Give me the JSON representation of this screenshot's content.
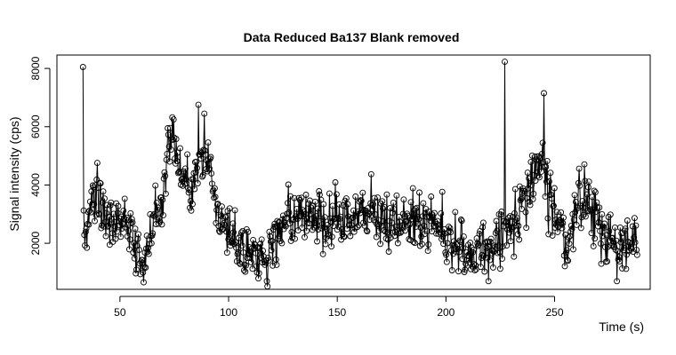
{
  "chart_data": {
    "type": "line",
    "title": "Data Reduced Ba137 Blank removed",
    "xlabel": "Time (s)",
    "ylabel": "Signal intensity (cps)",
    "xlim": [
      21,
      294
    ],
    "ylim": [
      420,
      8460
    ],
    "x_ticks": [
      50,
      100,
      150,
      200,
      250
    ],
    "y_ticks": [
      2000,
      4000,
      6000,
      8000
    ],
    "x_tick_labels": [
      "50",
      "100",
      "150",
      "200",
      "250"
    ],
    "y_tick_labels": [
      "2000",
      "4000",
      "6000",
      "8000"
    ],
    "line_color": "#000000",
    "marker": "open-circle",
    "grid": false,
    "sample_interval_s": 0.3,
    "series": [
      {
        "anchors_x": [
          33,
          34,
          36,
          40,
          45,
          50,
          55,
          58,
          60,
          63,
          66,
          70,
          72,
          74,
          76,
          78,
          80,
          83,
          86,
          89,
          92,
          95,
          98,
          102,
          106,
          110,
          114,
          117,
          120,
          124,
          128,
          132,
          136,
          140,
          145,
          150,
          155,
          160,
          165,
          170,
          175,
          180,
          185,
          190,
          195,
          200,
          205,
          210,
          215,
          220,
          225,
          228,
          230,
          235,
          240,
          244,
          247,
          250,
          253,
          256,
          260,
          264,
          268,
          272,
          276,
          280,
          284,
          288
        ],
        "anchors_y": [
          3200,
          2200,
          3100,
          3700,
          2800,
          2900,
          2400,
          1600,
          1300,
          1800,
          2800,
          3500,
          5300,
          5800,
          5400,
          4500,
          4100,
          3900,
          5100,
          4900,
          4500,
          3200,
          2500,
          2100,
          1800,
          1600,
          1500,
          1500,
          2000,
          2600,
          2900,
          3000,
          3100,
          3000,
          2900,
          3000,
          2800,
          3100,
          3000,
          2700,
          2800,
          3000,
          2900,
          2800,
          2700,
          2300,
          2000,
          1700,
          1500,
          1800,
          2000,
          2500,
          2800,
          3300,
          4000,
          4800,
          4000,
          3200,
          2400,
          1900,
          3300,
          3800,
          3000,
          2500,
          2200,
          1800,
          2000,
          2300
        ],
        "noise_sd": 480,
        "spikes_x": [
          33,
          227,
          245,
          86,
          118,
          61,
          113
        ],
        "spikes_y": [
          8050,
          8230,
          7150,
          6750,
          520,
          660,
          1000
        ]
      }
    ]
  }
}
